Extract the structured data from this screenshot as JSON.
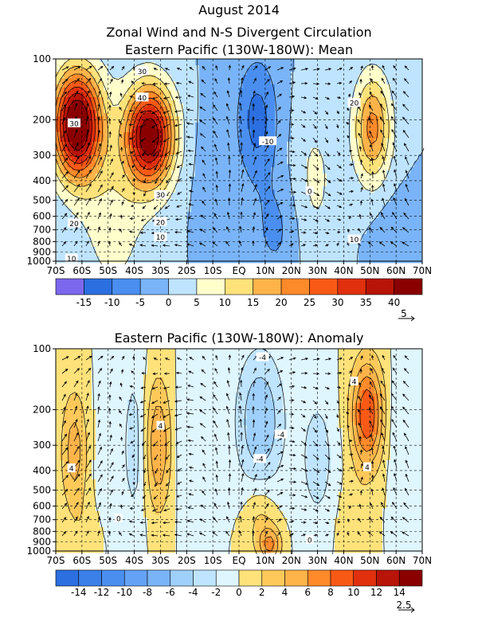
{
  "header": {
    "line1": "August 2014",
    "line2": "Zonal Wind and N-S Divergent Circulation",
    "line3": "Eastern Pacific (130W-180W): Mean"
  },
  "chart_data": [
    {
      "type": "heatmap",
      "title": "Eastern Pacific (130W-180W): Mean",
      "x_ticks": [
        "70S",
        "60S",
        "50S",
        "40S",
        "30S",
        "20S",
        "10S",
        "EQ",
        "10N",
        "20N",
        "30N",
        "40N",
        "50N",
        "60N",
        "70N"
      ],
      "y_ticks": [
        "100",
        "200",
        "300",
        "400",
        "500",
        "600",
        "700",
        "800",
        "900",
        "1000"
      ],
      "y_scale": "log-pressure",
      "colorbar": {
        "labels": [
          "-15",
          "-10",
          "-5",
          "0",
          "5",
          "10",
          "15",
          "20",
          "25",
          "30",
          "35",
          "40"
        ],
        "colors": [
          "#7b68ee",
          "#2b6fe0",
          "#4a8ff0",
          "#7ab4f8",
          "#bfe4ff",
          "#ffffcc",
          "#ffe27a",
          "#ffb44a",
          "#ff8a2a",
          "#f85a16",
          "#e0300e",
          "#b81408",
          "#8a0000"
        ]
      },
      "vector_reference": "5",
      "contour_labels": [
        {
          "t": "30",
          "x": -37,
          "p": 115
        },
        {
          "t": "40",
          "x": -37,
          "p": 155
        },
        {
          "t": "30",
          "x": -63,
          "p": 208
        },
        {
          "t": "30",
          "x": -30,
          "p": 470
        },
        {
          "t": "20",
          "x": -30,
          "p": 640
        },
        {
          "t": "10",
          "x": -30,
          "p": 760
        },
        {
          "t": "20",
          "x": -63,
          "p": 650
        },
        {
          "t": "-10",
          "x": 11,
          "p": 255
        },
        {
          "t": "20",
          "x": 44,
          "p": 165
        },
        {
          "t": "10",
          "x": 44,
          "p": 780
        },
        {
          "t": "0",
          "x": 27,
          "p": 450
        },
        {
          "t": "10",
          "x": -64,
          "p": 970
        }
      ],
      "features": [
        {
          "x": -62,
          "p": 210,
          "w": 9,
          "hp": 0.6,
          "amp": 48
        },
        {
          "x": -34,
          "p": 240,
          "w": 9,
          "hp": 0.55,
          "amp": 44
        },
        {
          "x": -48,
          "p": 500,
          "w": 14,
          "hp": 1.2,
          "amp": 8
        },
        {
          "x": -10,
          "p": 400,
          "w": 6,
          "hp": 0.8,
          "amp": -4
        },
        {
          "x": 7,
          "p": 200,
          "w": 8,
          "hp": 0.7,
          "amp": -12
        },
        {
          "x": 14,
          "p": 700,
          "w": 9,
          "hp": 0.6,
          "amp": -6
        },
        {
          "x": 29,
          "p": 400,
          "w": 9,
          "hp": 0.9,
          "amp": 6
        },
        {
          "x": 51,
          "p": 220,
          "w": 7,
          "hp": 0.6,
          "amp": 22
        },
        {
          "x": 60,
          "p": 800,
          "w": 8,
          "hp": 0.5,
          "amp": -4
        }
      ]
    },
    {
      "type": "heatmap",
      "title": "Eastern Pacific (130W-180W): Anomaly",
      "x_ticks": [
        "70S",
        "60S",
        "50S",
        "40S",
        "30S",
        "20S",
        "10S",
        "EQ",
        "10N",
        "20N",
        "30N",
        "40N",
        "50N",
        "60N",
        "70N"
      ],
      "y_ticks": [
        "100",
        "200",
        "300",
        "400",
        "500",
        "600",
        "700",
        "800",
        "900",
        "1000"
      ],
      "y_scale": "log-pressure",
      "colorbar": {
        "labels": [
          "-14",
          "-12",
          "-10",
          "-8",
          "-6",
          "-4",
          "-2",
          "0",
          "2",
          "4",
          "6",
          "8",
          "10",
          "12",
          "14"
        ],
        "colors": [
          "#2b6fe0",
          "#3b7fe8",
          "#4a8ff0",
          "#64a2f5",
          "#7ab4f8",
          "#9fd0fb",
          "#bfe4ff",
          "#dff6ff",
          "#ffe27a",
          "#ffc95a",
          "#ffb44a",
          "#ff8a2a",
          "#f85a16",
          "#e0300e",
          "#b81408",
          "#8a0000"
        ]
      },
      "vector_reference": "2.5",
      "contour_labels": [
        {
          "t": "-4",
          "x": 9,
          "p": 110
        },
        {
          "t": "4",
          "x": 44,
          "p": 145
        },
        {
          "t": "4",
          "x": -30,
          "p": 240
        },
        {
          "t": "-4",
          "x": 16,
          "p": 265
        },
        {
          "t": "4",
          "x": -64,
          "p": 390
        },
        {
          "t": "-4",
          "x": 8,
          "p": 350
        },
        {
          "t": "4",
          "x": 49,
          "p": 385
        },
        {
          "t": "0",
          "x": -46,
          "p": 690
        },
        {
          "t": "0",
          "x": 27,
          "p": 880
        }
      ],
      "features": [
        {
          "x": -63,
          "p": 320,
          "w": 5,
          "hp": 0.7,
          "amp": 5
        },
        {
          "x": -51,
          "p": 400,
          "w": 4,
          "hp": 1.0,
          "amp": -2
        },
        {
          "x": -40,
          "p": 300,
          "w": 5,
          "hp": 1.0,
          "amp": -3
        },
        {
          "x": -31,
          "p": 300,
          "w": 5,
          "hp": 0.75,
          "amp": 6
        },
        {
          "x": -20,
          "p": 280,
          "w": 4,
          "hp": 0.8,
          "amp": -2
        },
        {
          "x": 8,
          "p": 230,
          "w": 9,
          "hp": 0.8,
          "amp": -6
        },
        {
          "x": 8,
          "p": 700,
          "w": 6,
          "hp": 0.45,
          "amp": 3
        },
        {
          "x": 12,
          "p": 930,
          "w": 4,
          "hp": 0.2,
          "amp": 6
        },
        {
          "x": 30,
          "p": 350,
          "w": 7,
          "hp": 0.8,
          "amp": -3
        },
        {
          "x": 49,
          "p": 210,
          "w": 6,
          "hp": 0.6,
          "amp": 10
        },
        {
          "x": 44,
          "p": 800,
          "w": 6,
          "hp": 0.5,
          "amp": 2
        },
        {
          "x": 61,
          "p": 300,
          "w": 4,
          "hp": 0.9,
          "amp": -2
        },
        {
          "x": -56,
          "p": 850,
          "w": 8,
          "hp": 0.4,
          "amp": 1.5
        }
      ]
    }
  ]
}
